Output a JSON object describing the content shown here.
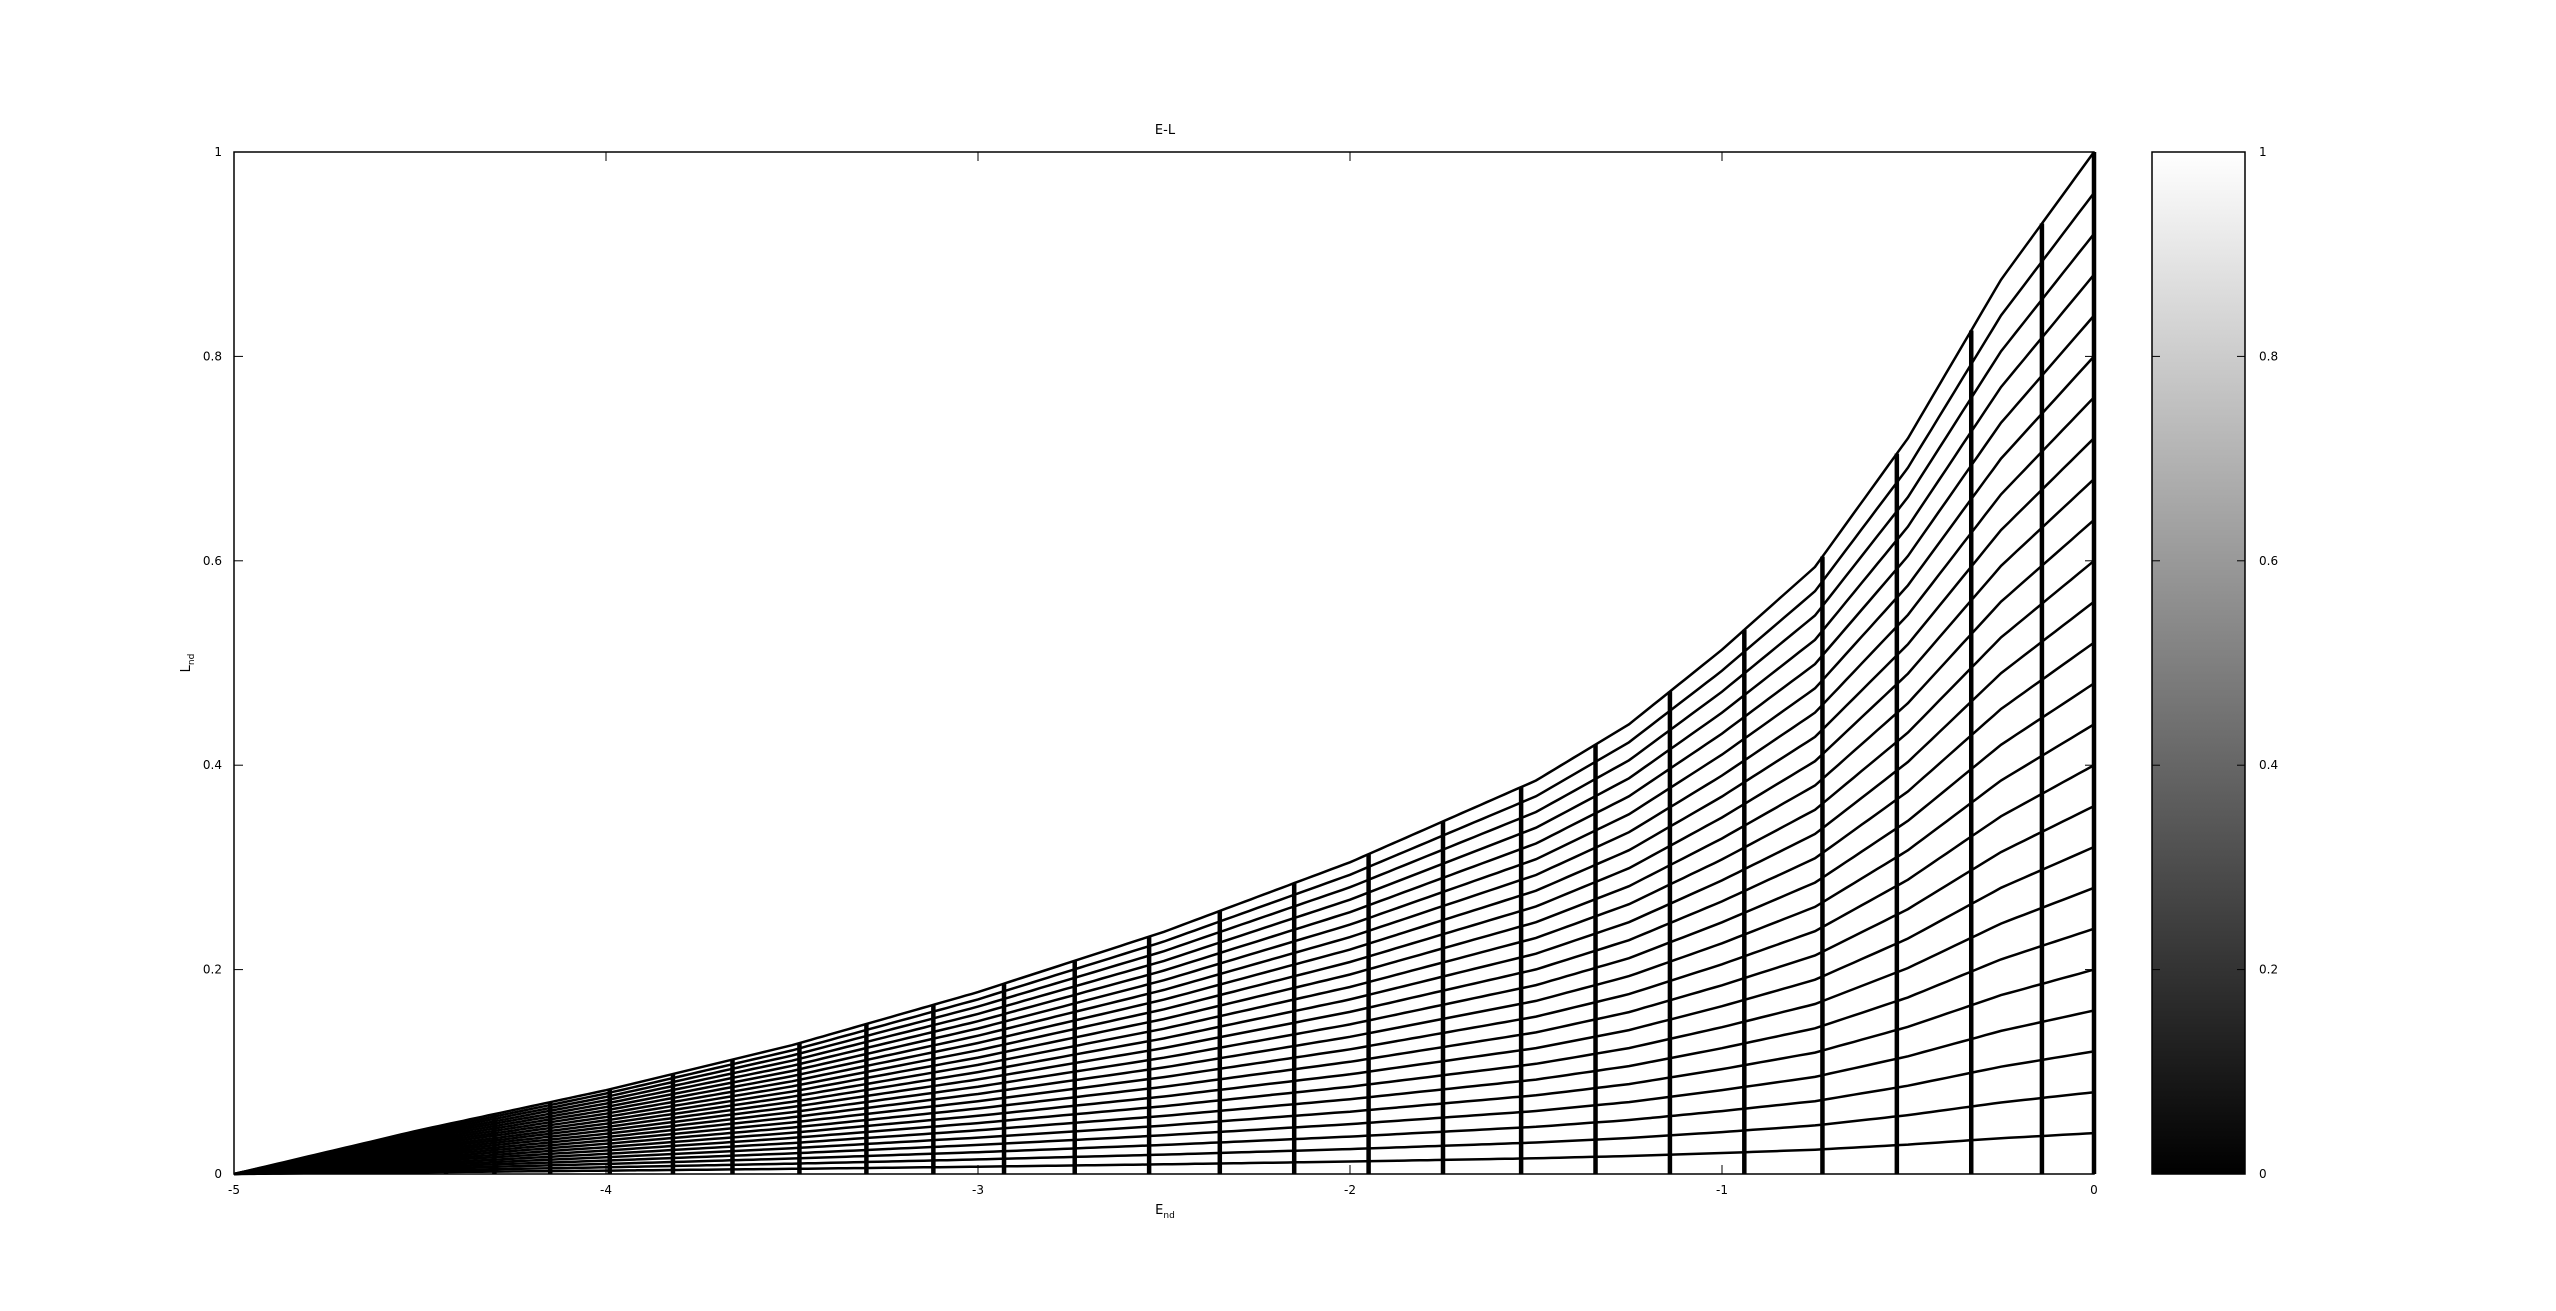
{
  "chart_data": {
    "type": "line",
    "title": "E-L",
    "xlabel": {
      "main": "E",
      "sub": "nd"
    },
    "ylabel": {
      "main": "L",
      "sub": "nd"
    },
    "xlim": [
      -5,
      0
    ],
    "ylim": [
      0,
      1
    ],
    "xticks": [
      "-5",
      "-4",
      "-3",
      "-2",
      "-1",
      "0"
    ],
    "yticks": [
      "0",
      "0.2",
      "0.4",
      "0.6",
      "0.8",
      "1"
    ],
    "grid": false,
    "boundary_curve": {
      "x": [
        -5.0,
        -4.5,
        -4.0,
        -3.5,
        -3.0,
        -2.5,
        -2.0,
        -1.5,
        -1.25,
        -1.0,
        -0.75,
        -0.5,
        -0.25,
        0.0
      ],
      "y": [
        0.0,
        0.043,
        0.082,
        0.126,
        0.178,
        0.237,
        0.305,
        0.385,
        0.44,
        0.513,
        0.594,
        0.72,
        0.875,
        1.0
      ]
    },
    "level_fractions": [
      0.04,
      0.08,
      0.12,
      0.16,
      0.2,
      0.24,
      0.28,
      0.32,
      0.36,
      0.4,
      0.44,
      0.48,
      0.52,
      0.56,
      0.6,
      0.64,
      0.68,
      0.72,
      0.76,
      0.8,
      0.84,
      0.88,
      0.92,
      0.96
    ],
    "vertical_lines_x": [
      -4.9,
      -4.78,
      -4.68,
      -4.56,
      -4.43,
      -4.3,
      -4.15,
      -3.99,
      -3.82,
      -3.66,
      -3.48,
      -3.3,
      -3.12,
      -2.93,
      -2.74,
      -2.54,
      -2.35,
      -2.15,
      -1.95,
      -1.75,
      -1.54,
      -1.34,
      -1.14,
      -0.94,
      -0.73,
      -0.53,
      -0.33,
      -0.14,
      0.0
    ],
    "colorbar": {
      "range": [
        0,
        1
      ],
      "ticks": [
        "0",
        "0.2",
        "0.4",
        "0.6",
        "0.8",
        "1"
      ],
      "gradient": [
        "#000000",
        "#ffffff"
      ]
    }
  }
}
